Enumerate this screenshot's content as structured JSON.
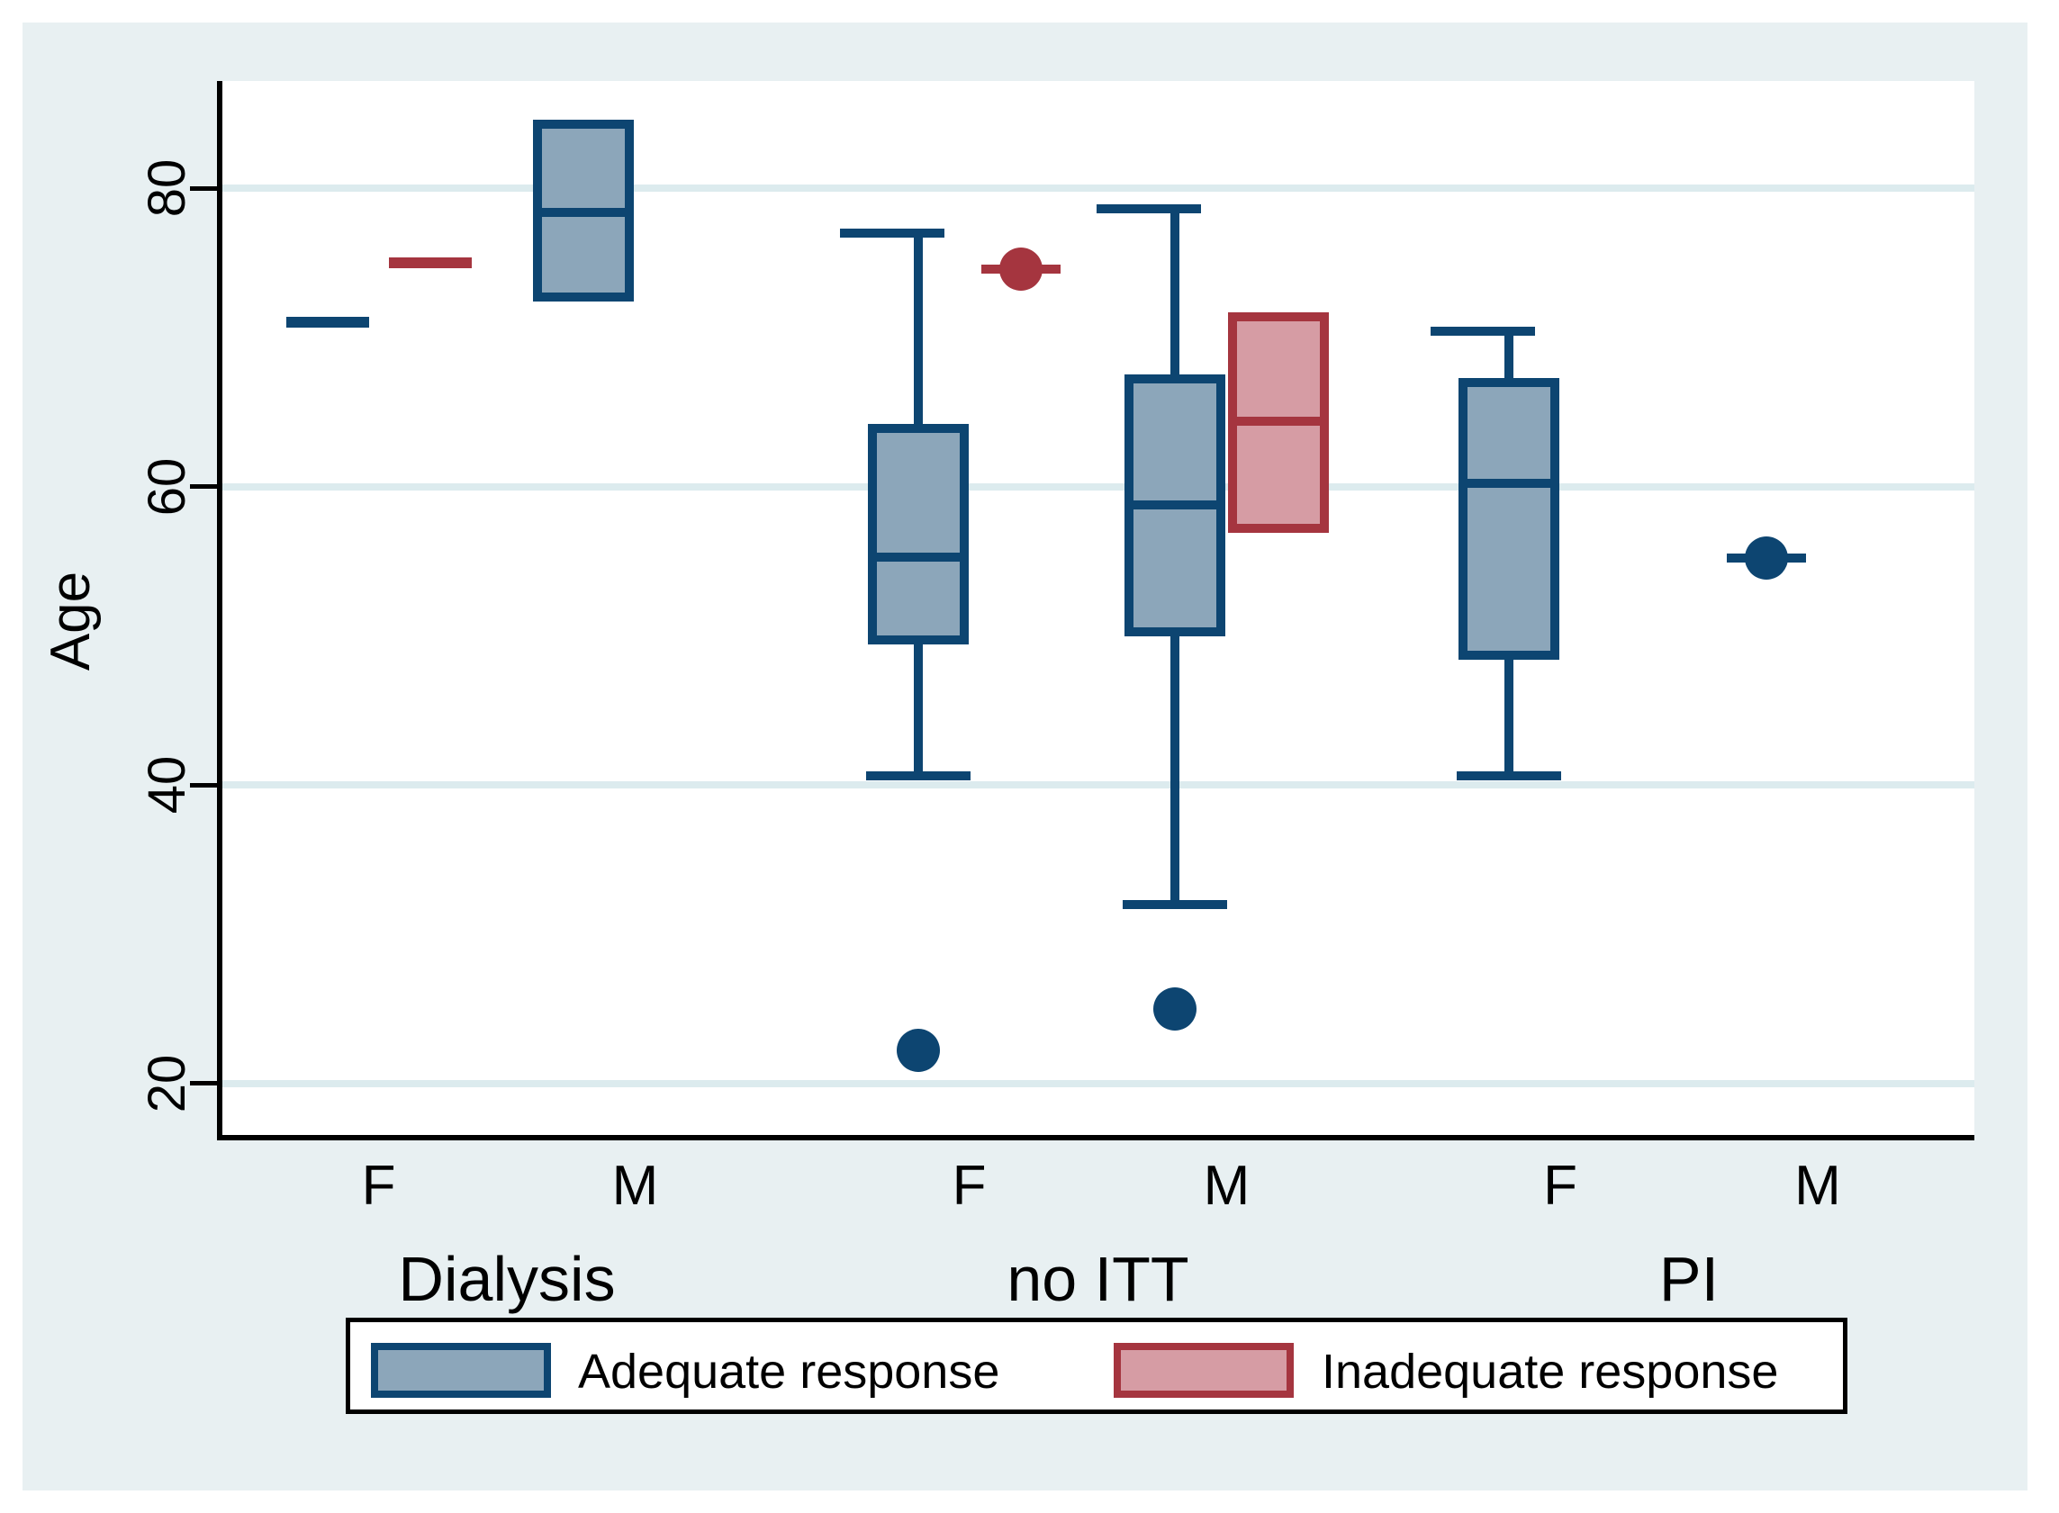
{
  "chart_data": {
    "type": "box",
    "title": "",
    "ylabel": "Age",
    "xlabel": "",
    "y_ticks": [
      80,
      60,
      40,
      20
    ],
    "y_domain": [
      16.6,
      87.3
    ],
    "grid": true,
    "legend_position": "bottom",
    "legend": [
      "Adequate response",
      "Inadequate response"
    ],
    "groups": [
      {
        "label": "Dialysis",
        "sexes": [
          "F",
          "M"
        ]
      },
      {
        "label": "no ITT",
        "sexes": [
          "F",
          "M"
        ]
      },
      {
        "label": "PI",
        "sexes": [
          "F",
          "M"
        ]
      }
    ],
    "boxes": [
      {
        "group": "Dialysis",
        "sex": "F",
        "response": "adequate",
        "kind": "median_line",
        "median": 71
      },
      {
        "group": "Dialysis",
        "sex": "F",
        "response": "inadequate",
        "kind": "median_line",
        "median": 75
      },
      {
        "group": "Dialysis",
        "sex": "M",
        "response": "adequate",
        "kind": "box",
        "q1": 73,
        "median": 78.4,
        "q3": 84
      },
      {
        "group": "no ITT",
        "sex": "F",
        "response": "adequate",
        "kind": "box_whisker",
        "q1": 50,
        "median": 55.3,
        "q3": 63.6,
        "whisker_low": 40.6,
        "whisker_high": 77,
        "outliers": [
          22.2
        ]
      },
      {
        "group": "no ITT",
        "sex": "F",
        "response": "inadequate",
        "kind": "point",
        "value": 74.6
      },
      {
        "group": "no ITT",
        "sex": "M",
        "response": "adequate",
        "kind": "box_whisker",
        "q1": 50.6,
        "median": 58.8,
        "q3": 66.9,
        "whisker_low": 32,
        "whisker_high": 78.6,
        "outliers": [
          25
        ]
      },
      {
        "group": "no ITT",
        "sex": "M",
        "response": "inadequate",
        "kind": "box",
        "q1": 57.5,
        "median": 64.4,
        "q3": 71.1
      },
      {
        "group": "PI",
        "sex": "F",
        "response": "adequate",
        "kind": "box_whisker",
        "q1": 49,
        "median": 60.2,
        "q3": 66.7,
        "whisker_low": 40.6,
        "whisker_high": 70.4,
        "outliers": []
      },
      {
        "group": "PI",
        "sex": "M",
        "response": "adequate",
        "kind": "point",
        "value": 55.2
      }
    ],
    "colors": {
      "adequate_fill": "#8CA6BA",
      "adequate_border": "#0D4571",
      "inadequate_fill": "#D69CA4",
      "inadequate_border": "#A5353F",
      "background": "#E8F0F2",
      "plot_background": "#FFFFFF",
      "gridline": "#DCEBEE"
    }
  }
}
